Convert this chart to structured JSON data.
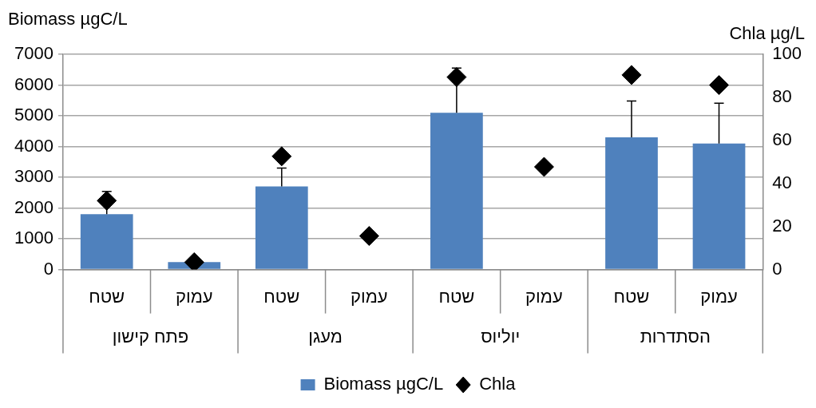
{
  "chart_data": {
    "type": "bar",
    "ylabel": "Biomass µgC/L",
    "y2label": "Chla µg/L",
    "categories": [
      "שטח",
      "עמוק",
      "שטח",
      "עמוק",
      "שטח",
      "עמוק",
      "שטח",
      "עמוק"
    ],
    "annotations": [
      "פתח קישון",
      "מעגן",
      "יוליוס",
      "הסתדרות"
    ],
    "series": [
      {
        "name": "Biomass µgC/L",
        "color": "#4f81bd",
        "values": [
          1800,
          240,
          2700,
          null,
          5100,
          null,
          4300,
          4100
        ],
        "errors": [
          [
            1800,
            2540
          ],
          null,
          [
            2700,
            3300
          ],
          null,
          [
            5100,
            6550
          ],
          null,
          [
            4300,
            5480
          ],
          [
            4100,
            5410
          ]
        ]
      },
      {
        "name": "Chla",
        "type": "scatter",
        "axis": "y2",
        "color": "#000000",
        "marker": "diamond",
        "values": [
          32,
          3.4,
          52.6,
          15.6,
          89.4,
          47.7,
          90.4,
          85.7
        ]
      }
    ],
    "ylim": [
      0,
      7000
    ],
    "yticks": [
      0,
      1000,
      2000,
      3000,
      4000,
      5000,
      6000,
      7000
    ],
    "y2lim": [
      0,
      100
    ],
    "y2ticks": [
      0,
      20,
      40,
      60,
      80,
      100
    ],
    "grid": "y",
    "legend": "bottom"
  }
}
